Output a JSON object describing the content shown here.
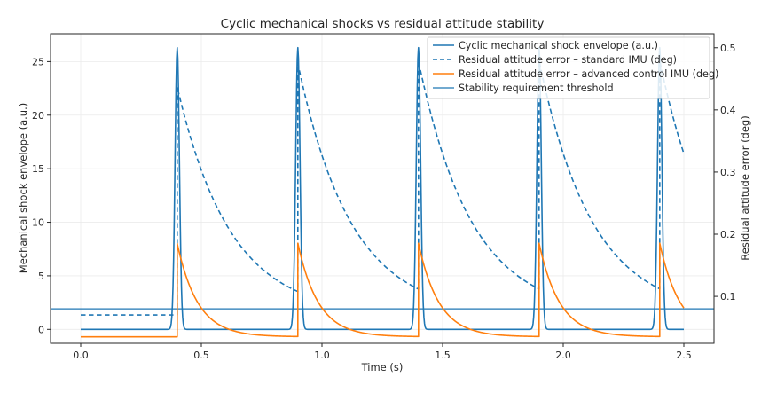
{
  "chart_data": {
    "type": "line",
    "title": "Cyclic mechanical shocks vs residual attitude stability",
    "xlabel": "Time (s)",
    "ylabel_left": "Mechanical shock envelope (a.u.)",
    "ylabel_right": "Residual attitude error (deg)",
    "xlim": [
      -0.125,
      2.625
    ],
    "ylim_left": [
      -1.3,
      27.6
    ],
    "ylim_right": [
      0.0245,
      0.5225
    ],
    "x_ticks": [
      0.0,
      0.5,
      1.0,
      1.5,
      2.0,
      2.5
    ],
    "x_tick_labels": [
      "0.0",
      "0.5",
      "1.0",
      "1.5",
      "2.0",
      "2.5"
    ],
    "y_left_ticks": [
      0,
      5,
      10,
      15,
      20,
      25
    ],
    "y_left_tick_labels": [
      "0",
      "5",
      "10",
      "15",
      "20",
      "25"
    ],
    "y_right_ticks": [
      0.1,
      0.2,
      0.3,
      0.4,
      0.5
    ],
    "y_right_tick_labels": [
      "0.1",
      "0.2",
      "0.3",
      "0.4",
      "0.5"
    ],
    "grid": true,
    "legend_position": "top-right",
    "x_range": [
      0.0,
      2.5
    ],
    "sample_step": 0.0025,
    "shock_times": [
      0.4,
      0.9,
      1.4,
      1.9,
      2.4
    ],
    "series": [
      {
        "name": "Cyclic mechanical shock envelope (a.u.)",
        "axis": "left",
        "color": "#1f77b4",
        "style": "solid",
        "model": "gaussian-pulses",
        "peak": 26.3,
        "sigma_s": 0.009,
        "baseline": 0.0
      },
      {
        "name": "Residual attitude error – standard IMU (deg)",
        "axis": "right",
        "color": "#1f77b4",
        "style": "dashed",
        "model": "cumulative-exponential-decay",
        "baseline": 0.07,
        "jump": 0.367,
        "tau_s": 0.22
      },
      {
        "name": "Residual attitude error – advanced control IMU (deg)",
        "axis": "right",
        "color": "#ff7f0e",
        "style": "solid",
        "model": "cumulative-exponential-decay",
        "baseline": 0.035,
        "jump": 0.15,
        "tau_s": 0.085
      },
      {
        "name": "Stability requirement threshold",
        "axis": "right",
        "color": "#1f77b4",
        "style": "solid",
        "model": "horizontal-line",
        "value": 0.08
      }
    ]
  }
}
